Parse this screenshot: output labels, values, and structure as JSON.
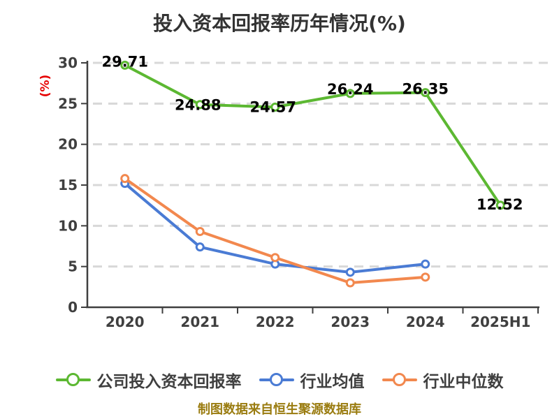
{
  "title": "投入资本回报率历年情况(%)",
  "y_axis_label": "(%)",
  "footer": "制图数据来自恒生聚源数据库",
  "colors": {
    "title": "#333333",
    "axis": "#3f3f3f",
    "grid": "#d8d8d8",
    "data_label": "#000000",
    "y_unit": "#e60000",
    "footer": "#9a7c10",
    "company": "#5cb832",
    "industry_mean": "#4a7bd4",
    "industry_median": "#f2884e"
  },
  "chart_data": {
    "type": "line",
    "title": "投入资本回报率历年情况(%)",
    "categories": [
      "2020",
      "2021",
      "2022",
      "2023",
      "2024",
      "2025H1"
    ],
    "series": [
      {
        "name": "公司投入资本回报率",
        "color": "#5cb832",
        "values": [
          29.71,
          24.88,
          24.57,
          26.24,
          26.35,
          12.52
        ],
        "labeled": true
      },
      {
        "name": "行业均值",
        "color": "#4a7bd4",
        "values": [
          15.2,
          7.4,
          5.3,
          4.3,
          5.3,
          null
        ],
        "labeled": false
      },
      {
        "name": "行业中位数",
        "color": "#f2884e",
        "values": [
          15.8,
          9.3,
          6.1,
          3.0,
          3.7,
          null
        ],
        "labeled": false
      }
    ],
    "xlabel": "",
    "ylabel": "(%)",
    "ylim": [
      0,
      30
    ],
    "ytick_step": 5,
    "grid": "horizontal-dashed",
    "legend_position": "bottom",
    "marker": "white-filled-circle"
  }
}
